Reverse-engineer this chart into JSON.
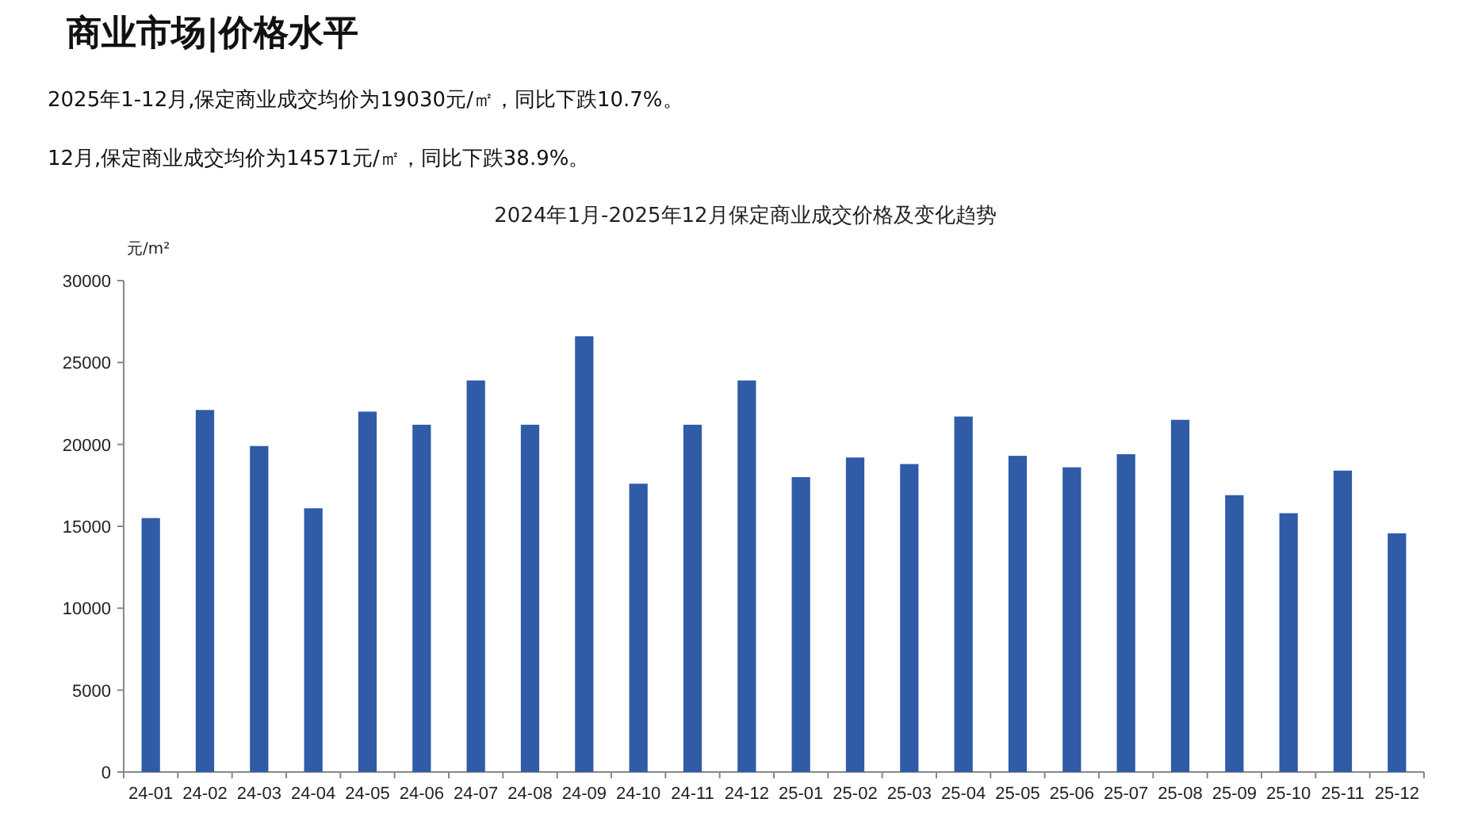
{
  "chart_data": {
    "type": "bar",
    "title": "2024年1月-2025年12月保定商业成交价格及变化趋势",
    "ylabel": "元/m²",
    "annotations": [
      "商业市场|价格水平",
      "2025年1-12月,保定商业成交均价为19030元/㎡，同比下跌10.7%。",
      "12月,保定商业成交均价为14571元/㎡，同比下跌38.9%。"
    ],
    "categories": [
      "24-01",
      "24-02",
      "24-03",
      "24-04",
      "24-05",
      "24-06",
      "24-07",
      "24-08",
      "24-09",
      "24-10",
      "24-11",
      "24-12",
      "25-01",
      "25-02",
      "25-03",
      "25-04",
      "25-05",
      "25-06",
      "25-07",
      "25-08",
      "25-09",
      "25-10",
      "25-11",
      "25-12"
    ],
    "values": [
      15500,
      22100,
      19900,
      16100,
      22000,
      21200,
      23900,
      21200,
      26600,
      17600,
      21200,
      23900,
      18000,
      19200,
      18800,
      21700,
      19300,
      18600,
      19400,
      21500,
      16900,
      15800,
      18400,
      14571
    ],
    "color": "#2f5ba7",
    "ylim": [
      0,
      30000
    ],
    "yticks": [
      0,
      5000,
      10000,
      15000,
      20000,
      25000,
      30000
    ]
  }
}
